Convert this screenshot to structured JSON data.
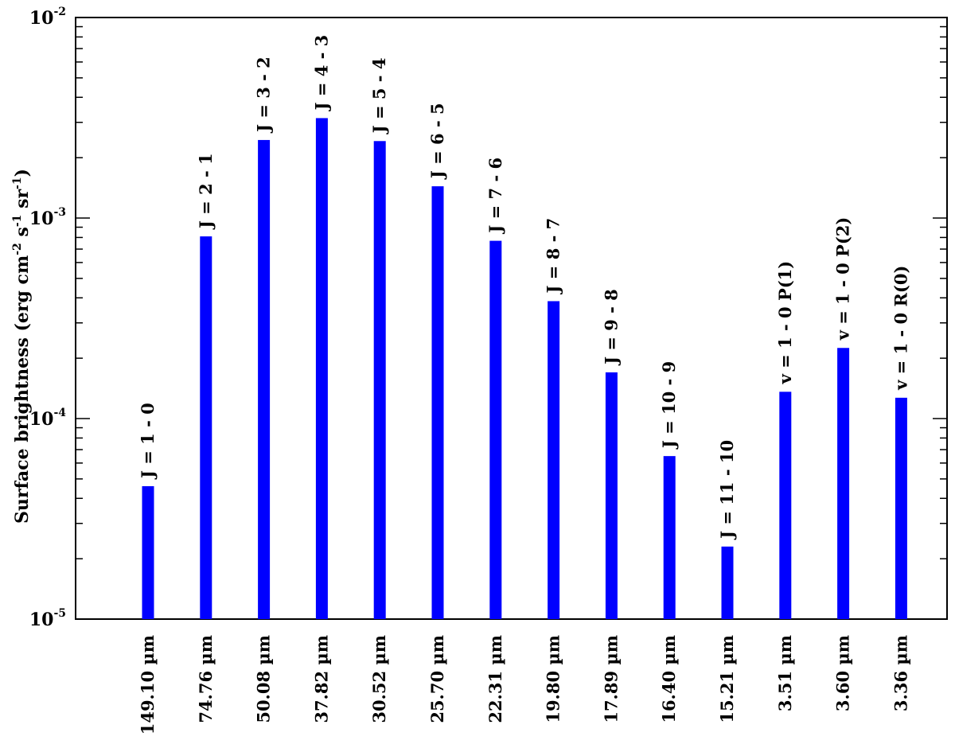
{
  "chart_data": {
    "type": "bar",
    "ylabel": "Surface brightness (erg cm",
    "ylabel_parts": {
      "main": "Surface brightness (erg cm",
      "sup1": "-2",
      "s": " s",
      "sup2": "-1",
      "sr": " sr",
      "sup3": "-1",
      "close": ")"
    },
    "yscale": "log",
    "ylim": [
      1e-05,
      0.01
    ],
    "y_ticks": [
      {
        "base": "10",
        "exp": "-5",
        "value": 1e-05
      },
      {
        "base": "10",
        "exp": "-4",
        "value": 0.0001
      },
      {
        "base": "10",
        "exp": "-3",
        "value": 0.001
      },
      {
        "base": "10",
        "exp": "-2",
        "value": 0.01
      }
    ],
    "categories": [
      "149.10 µm",
      "74.76 µm",
      "50.08 µm",
      "37.82 µm",
      "30.52 µm",
      "25.70 µm",
      "22.31 µm",
      "19.80 µm",
      "17.89 µm",
      "16.40 µm",
      "15.21 µm",
      "3.51 µm",
      "3.60 µm",
      "3.36 µm"
    ],
    "line_labels": [
      "J = 1 - 0",
      "J = 2 - 1",
      "J = 3 - 2",
      "J = 4 - 3",
      "J = 5 - 4",
      "J = 6 - 5",
      "J = 7 - 6",
      "J = 8 - 7",
      "J = 9 - 8",
      "J = 10 - 9",
      "J = 11 - 10",
      "v = 1 - 0 P(1)",
      "v = 1 - 0 P(2)",
      "v = 1 - 0 R(0)"
    ],
    "values": [
      4.6e-05,
      0.00081,
      0.00245,
      0.00315,
      0.00242,
      0.00144,
      0.00077,
      0.000385,
      0.00017,
      6.5e-05,
      2.3e-05,
      0.000136,
      0.000225,
      0.000127
    ],
    "bar_color": "#0000ff",
    "grid": false,
    "legend": "none"
  }
}
